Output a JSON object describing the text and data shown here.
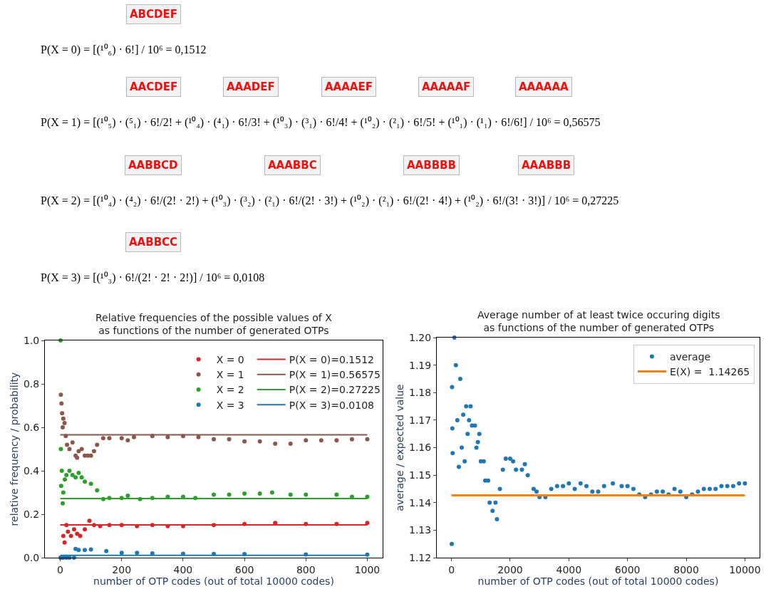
{
  "chart_data": [
    {
      "type": "other",
      "annotations": [
        "ABCDEF",
        "P(X = 0) = [(¹⁰₆) · 6!] / 10⁶ = 0,1512"
      ]
    },
    {
      "type": "other",
      "annotations": [
        "AACDEF",
        "AAADEF",
        "AAAAEF",
        "AAAAAF",
        "AAAAAA",
        "P(X = 1) = [(¹⁰₅) · (⁵₁) · 6!/2! + (¹⁰₄) · (⁴₁) · 6!/3! + (¹⁰₃) · (³₁) · 6!/4! + (¹⁰₂) · (²₁) · 6!/5! + (¹⁰₁) · (¹₁) · 6!/6!] / 10⁶ = 0,56575"
      ]
    },
    {
      "type": "other",
      "annotations": [
        "AABBCD",
        "AAABBC",
        "AABBBB",
        "AAABBB",
        "P(X = 2) = [(¹⁰₄) · (⁴₂) · 6!/(2! · 2!) + (¹⁰₃) · (³₂) · (²₁) · 6!/(2! · 3!) + (¹⁰₂) · (²₁) · 6!/(2! · 4!) + (¹⁰₂) · 6!/(3! · 3!)] / 10⁶ = 0,27225"
      ]
    },
    {
      "type": "other",
      "annotations": [
        "AABBCC",
        "P(X = 3) = [(¹⁰₃) · 6!/(2! · 2! · 2!)] / 10⁶ = 0,0108"
      ]
    },
    {
      "type": "scatter",
      "title": "Relative frequencies of the possible values of X\nas functions of the number of generated OTPs",
      "xlabel": "number of OTP codes (out of total 10000 codes)",
      "ylabel": "relative frequency / probability",
      "xlim": [
        -50,
        1050
      ],
      "xticks": [
        0,
        200,
        400,
        600,
        800,
        1000
      ],
      "ylim": [
        0,
        1
      ],
      "yticks": [
        {
          "value": 0,
          "label": "0.0"
        },
        0.2,
        0.4,
        0.6,
        0.8,
        {
          "value": 1,
          "label": "1.0"
        }
      ],
      "grid": false,
      "legend": "top right",
      "series": [
        {
          "name": "X = 0",
          "color": "#d62728",
          "marker": "circle",
          "x": [
            2,
            6,
            10,
            14,
            20,
            25,
            35,
            45,
            55,
            65,
            80,
            95,
            110,
            130,
            160,
            200,
            250,
            300,
            350,
            400,
            500,
            600,
            700,
            800,
            900,
            1000
          ],
          "values": [
            0,
            0,
            0.1,
            0.07,
            0.15,
            0.12,
            0.1,
            0.13,
            0.11,
            0.1,
            0.13,
            0.17,
            0.15,
            0.145,
            0.15,
            0.15,
            0.145,
            0.15,
            0.145,
            0.145,
            0.15,
            0.155,
            0.16,
            0.155,
            0.155,
            0.16
          ]
        },
        {
          "name": "X = 1",
          "color": "#8c564b",
          "marker": "circle",
          "x": [
            2,
            4,
            6,
            8,
            10,
            14,
            18,
            22,
            30,
            40,
            50,
            55,
            60,
            70,
            80,
            90,
            100,
            110,
            120,
            140,
            160,
            200,
            220,
            240,
            300,
            350,
            400,
            450,
            500,
            550,
            600,
            650,
            700,
            750,
            800,
            850,
            900,
            950,
            1000
          ],
          "values": [
            0.75,
            0.71,
            0.665,
            0.6,
            0.64,
            0.62,
            0.56,
            0.52,
            0.5,
            0.53,
            0.47,
            0.46,
            0.49,
            0.5,
            0.47,
            0.47,
            0.47,
            0.49,
            0.52,
            0.55,
            0.55,
            0.55,
            0.54,
            0.555,
            0.56,
            0.555,
            0.56,
            0.555,
            0.545,
            0.545,
            0.535,
            0.535,
            0.525,
            0.525,
            0.54,
            0.54,
            0.54,
            0.545,
            0.545
          ]
        },
        {
          "name": "X = 2",
          "color": "#2ca02c",
          "marker": "circle",
          "x": [
            1,
            2,
            3,
            5,
            8,
            10,
            15,
            20,
            30,
            40,
            50,
            60,
            70,
            80,
            100,
            120,
            140,
            160,
            200,
            220,
            260,
            300,
            350,
            400,
            440,
            500,
            550,
            600,
            650,
            690,
            750,
            800,
            900,
            950,
            1000
          ],
          "values": [
            1,
            0.5,
            0.33,
            0.4,
            0.25,
            0.3,
            0.36,
            0.38,
            0.4,
            0.38,
            0.37,
            0.39,
            0.37,
            0.35,
            0.34,
            0.31,
            0.27,
            0.275,
            0.275,
            0.285,
            0.27,
            0.275,
            0.28,
            0.28,
            0.275,
            0.29,
            0.29,
            0.295,
            0.295,
            0.3,
            0.29,
            0.29,
            0.29,
            0.28,
            0.28
          ]
        },
        {
          "name": "X = 3",
          "color": "#1f77b4",
          "marker": "circle",
          "x": [
            1,
            10,
            20,
            30,
            45,
            50,
            60,
            80,
            100,
            150,
            200,
            250,
            300,
            400,
            500,
            600,
            800,
            1000
          ],
          "values": [
            0,
            0,
            0,
            0,
            0,
            0.04,
            0.035,
            0.035,
            0.038,
            0.03,
            0.022,
            0.022,
            0.02,
            0.018,
            0.017,
            0.016,
            0.015,
            0.014
          ]
        },
        {
          "type": "line",
          "name": "P(X = 0)=0.1512",
          "color": "#d62728",
          "x": [
            0,
            1000
          ],
          "values": [
            0.1512,
            0.1512
          ]
        },
        {
          "type": "line",
          "name": "P(X = 1)=0.56575",
          "color": "#8c564b",
          "x": [
            0,
            1000
          ],
          "values": [
            0.56575,
            0.56575
          ]
        },
        {
          "type": "line",
          "name": "P(X = 2)=0.27225",
          "color": "#2ca02c",
          "x": [
            0,
            1000
          ],
          "values": [
            0.27225,
            0.27225
          ]
        },
        {
          "type": "line",
          "name": "P(X = 3)=0.0108",
          "color": "#1f77b4",
          "x": [
            0,
            1000
          ],
          "values": [
            0.0108,
            0.0108
          ]
        }
      ]
    },
    {
      "type": "scatter",
      "title": "Average number of at least twice occuring digits\nas functions of the number of generated OTPs",
      "xlabel": "number of OTP codes (out of total 10000 codes)",
      "ylabel": "average / expected value",
      "xlim": [
        -500,
        10500
      ],
      "xticks": [
        0,
        2000,
        4000,
        6000,
        8000,
        10000
      ],
      "ylim": [
        1.12,
        1.2
      ],
      "yticks": [
        1.12,
        1.13,
        1.14,
        1.15,
        1.16,
        1.17,
        1.18,
        1.19,
        {
          "value": 1.2,
          "label": "1.20"
        }
      ],
      "grid": false,
      "legend": "top right",
      "series": [
        {
          "name": "average",
          "color": "#1f77b4",
          "marker": "circle",
          "x": [
            10,
            20,
            30,
            40,
            100,
            150,
            200,
            250,
            300,
            350,
            400,
            450,
            500,
            550,
            600,
            650,
            700,
            800,
            850,
            900,
            950,
            1000,
            1100,
            1150,
            1250,
            1300,
            1400,
            1500,
            1550,
            1650,
            1750,
            1850,
            2000,
            2100,
            2200,
            2400,
            2500,
            2600,
            2800,
            2900,
            3000,
            3200,
            3400,
            3600,
            3800,
            4000,
            4200,
            4400,
            4600,
            4800,
            5000,
            5200,
            5500,
            5800,
            6000,
            6200,
            6400,
            6600,
            6800,
            7000,
            7200,
            7400,
            7600,
            7800,
            8000,
            8200,
            8400,
            8600,
            8800,
            9000,
            9200,
            9400,
            9600,
            9800,
            10000
          ],
          "values": [
            1.125,
            1.182,
            1.167,
            1.158,
            1.2,
            1.19,
            1.17,
            1.153,
            1.185,
            1.16,
            1.172,
            1.155,
            1.175,
            1.165,
            1.17,
            1.175,
            1.168,
            1.168,
            1.16,
            1.162,
            1.165,
            1.155,
            1.155,
            1.148,
            1.148,
            1.14,
            1.137,
            1.14,
            1.134,
            1.145,
            1.152,
            1.156,
            1.156,
            1.155,
            1.152,
            1.152,
            1.154,
            1.15,
            1.145,
            1.144,
            1.142,
            1.142,
            1.145,
            1.146,
            1.146,
            1.147,
            1.145,
            1.147,
            1.146,
            1.144,
            1.144,
            1.146,
            1.147,
            1.146,
            1.146,
            1.145,
            1.143,
            1.142,
            1.143,
            1.144,
            1.144,
            1.143,
            1.145,
            1.144,
            1.142,
            1.143,
            1.144,
            1.145,
            1.145,
            1.145,
            1.146,
            1.146,
            1.146,
            1.147,
            1.147
          ]
        },
        {
          "type": "line",
          "name": "E(X) =  1.14265",
          "color": "#ff7f0e",
          "x": [
            0,
            10000
          ],
          "values": [
            1.14265,
            1.14265
          ]
        }
      ]
    }
  ]
}
